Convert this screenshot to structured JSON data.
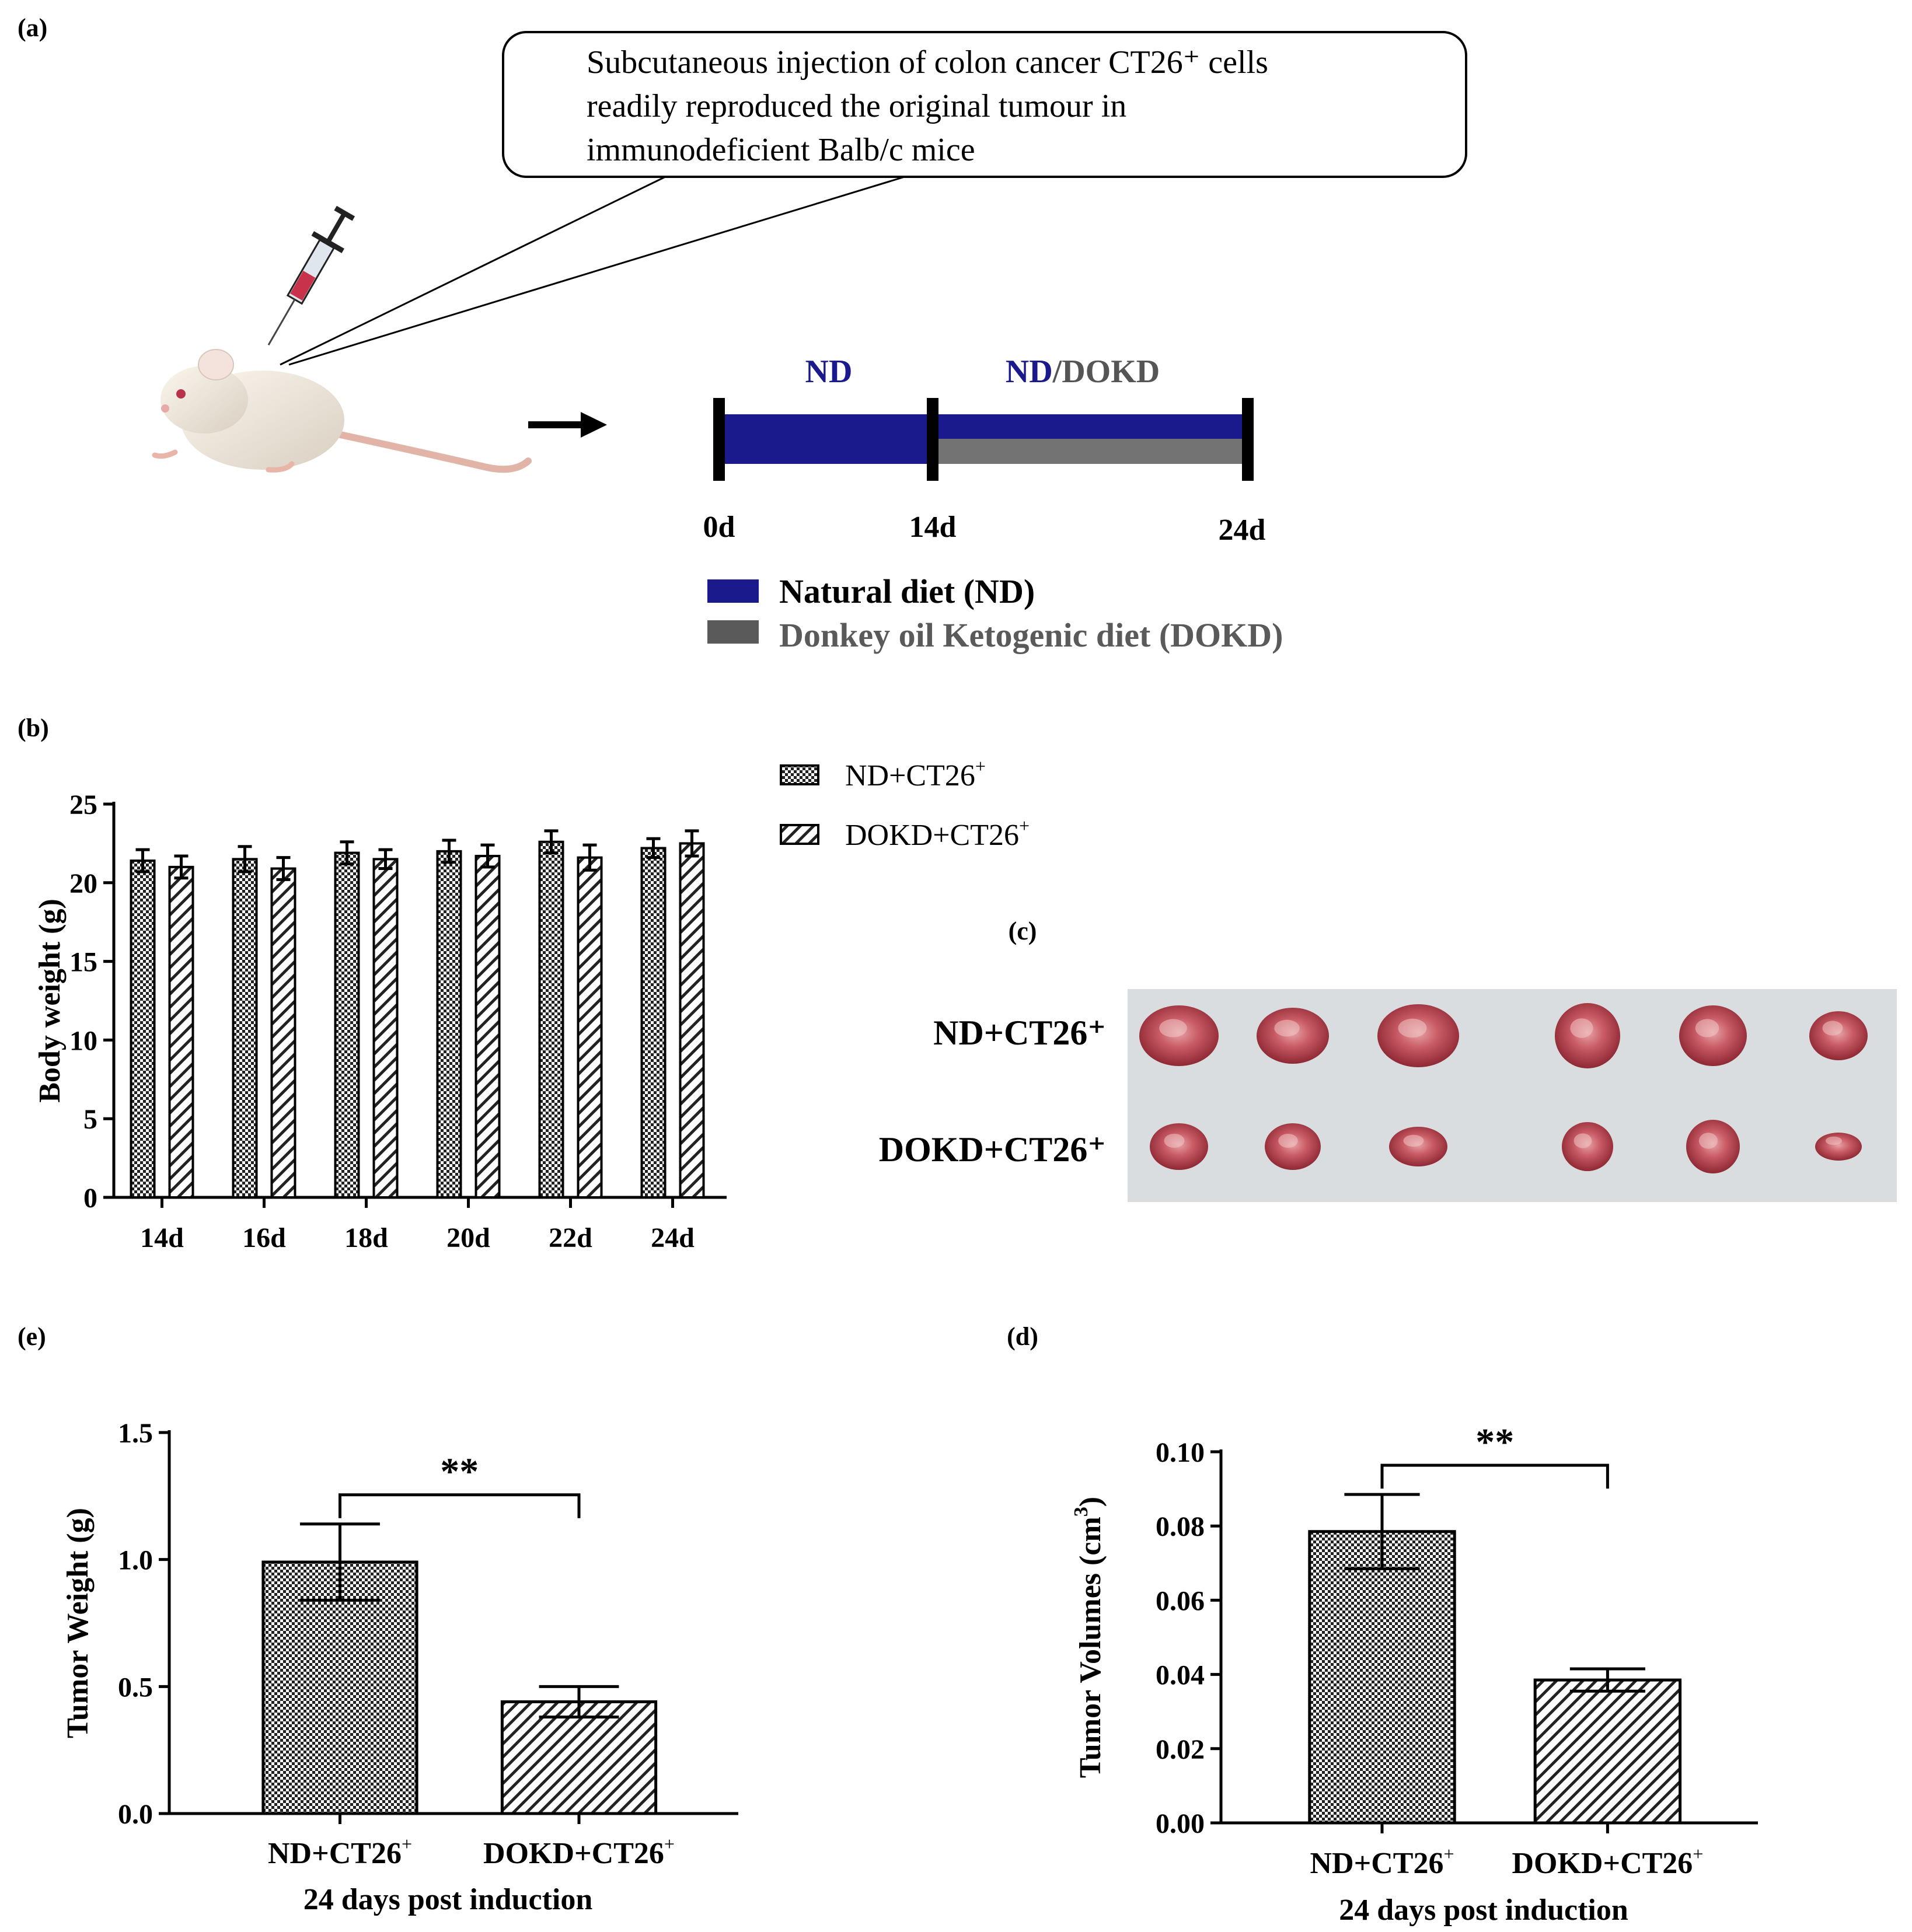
{
  "panel_a": {
    "label": "(a)",
    "callout_lines": [
      "Subcutaneous injection of colon cancer CT26⁺ cells",
      "readily reproduced the original tumour in",
      "immunodeficient Balb/c mice"
    ],
    "phase1_label": "ND",
    "phase2_label_nd": "ND",
    "phase2_label_slash": "/DOKD",
    "days": [
      "0d",
      "14d",
      "24d"
    ],
    "legend": [
      {
        "label": "Natural diet (ND)",
        "color": "#1a1a8c"
      },
      {
        "label": "Donkey oil Ketogenic diet (DOKD)",
        "color": "#5a5a5a"
      }
    ]
  },
  "panel_b": {
    "label": "(b)"
  },
  "panel_c": {
    "label": "(c)",
    "row_labels": [
      "ND+CT26⁺",
      "DOKD+CT26⁺"
    ]
  },
  "panel_d": {
    "label": "(d)"
  },
  "panel_e": {
    "label": "(e)"
  },
  "legend_b": {
    "items": [
      {
        "base": "ND+CT26",
        "sup": "+",
        "pattern": "checker"
      },
      {
        "base": "DOKD+CT26",
        "sup": "+",
        "pattern": "hatch"
      }
    ]
  },
  "chart_data": [
    {
      "id": "b",
      "type": "bar",
      "ylabel": "Body weight (g)",
      "ylim": [
        0,
        25
      ],
      "yticks": [
        "0",
        "5",
        "10",
        "15",
        "20",
        "25"
      ],
      "categories": [
        "14d",
        "16d",
        "18d",
        "20d",
        "22d",
        "24d"
      ],
      "series": [
        {
          "name": "ND+CT26+",
          "pattern": "checker",
          "values": [
            21.4,
            21.5,
            21.9,
            22.0,
            22.6,
            22.2
          ],
          "errors": [
            0.7,
            0.8,
            0.7,
            0.7,
            0.7,
            0.6
          ]
        },
        {
          "name": "DOKD+CT26+",
          "pattern": "hatch",
          "values": [
            21.0,
            20.9,
            21.5,
            21.7,
            21.6,
            22.5
          ],
          "errors": [
            0.7,
            0.7,
            0.6,
            0.7,
            0.8,
            0.8
          ]
        }
      ]
    },
    {
      "id": "e",
      "type": "bar",
      "ylabel": "Tumor Weight (g)",
      "xlabel": "24 days post induction",
      "ylim": [
        0,
        1.5
      ],
      "yticks": [
        "0.0",
        "0.5",
        "1.0",
        "1.5"
      ],
      "categories": [
        "ND+CT26",
        "DOKD+CT26"
      ],
      "category_sup": "+",
      "patterns": [
        "checker",
        "hatch"
      ],
      "values": [
        0.99,
        0.44
      ],
      "errors": [
        0.15,
        0.06
      ],
      "significance": "**"
    },
    {
      "id": "d",
      "type": "bar",
      "ylabel_main": "Tumor  Volumes (cm",
      "ylabel_sup": "3",
      "ylabel_end": ")",
      "xlabel": "24 days post induction",
      "ylim": [
        0,
        0.1
      ],
      "yticks": [
        "0.00",
        "0.02",
        "0.04",
        "0.06",
        "0.08",
        "0.10"
      ],
      "categories": [
        "ND+CT26",
        "DOKD+CT26"
      ],
      "category_sup": "+",
      "patterns": [
        "checker",
        "hatch"
      ],
      "values": [
        0.0785,
        0.0385
      ],
      "errors": [
        0.01,
        0.003
      ],
      "significance": "**"
    }
  ]
}
